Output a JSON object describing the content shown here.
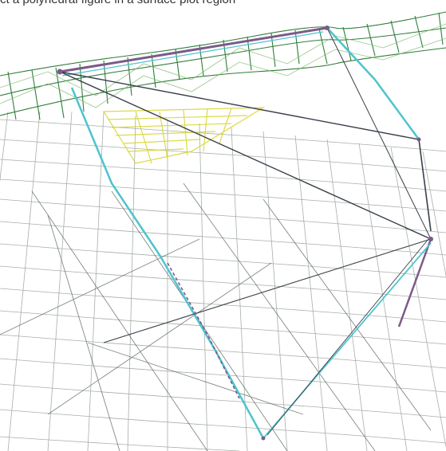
{
  "caption": {
    "text": "ct a polyhedral figure in a surface plot region"
  },
  "palette": {
    "ridge": "#2f7d3a",
    "ridge_light": "#7bb86a",
    "mesh": "#5f6f62",
    "cyan_edge": "#4ec3cf",
    "purple_edge": "#7a5a8a",
    "dark_edge": "#3a3f4a",
    "highlight": "#d8d32a",
    "background": "#ffffff"
  }
}
